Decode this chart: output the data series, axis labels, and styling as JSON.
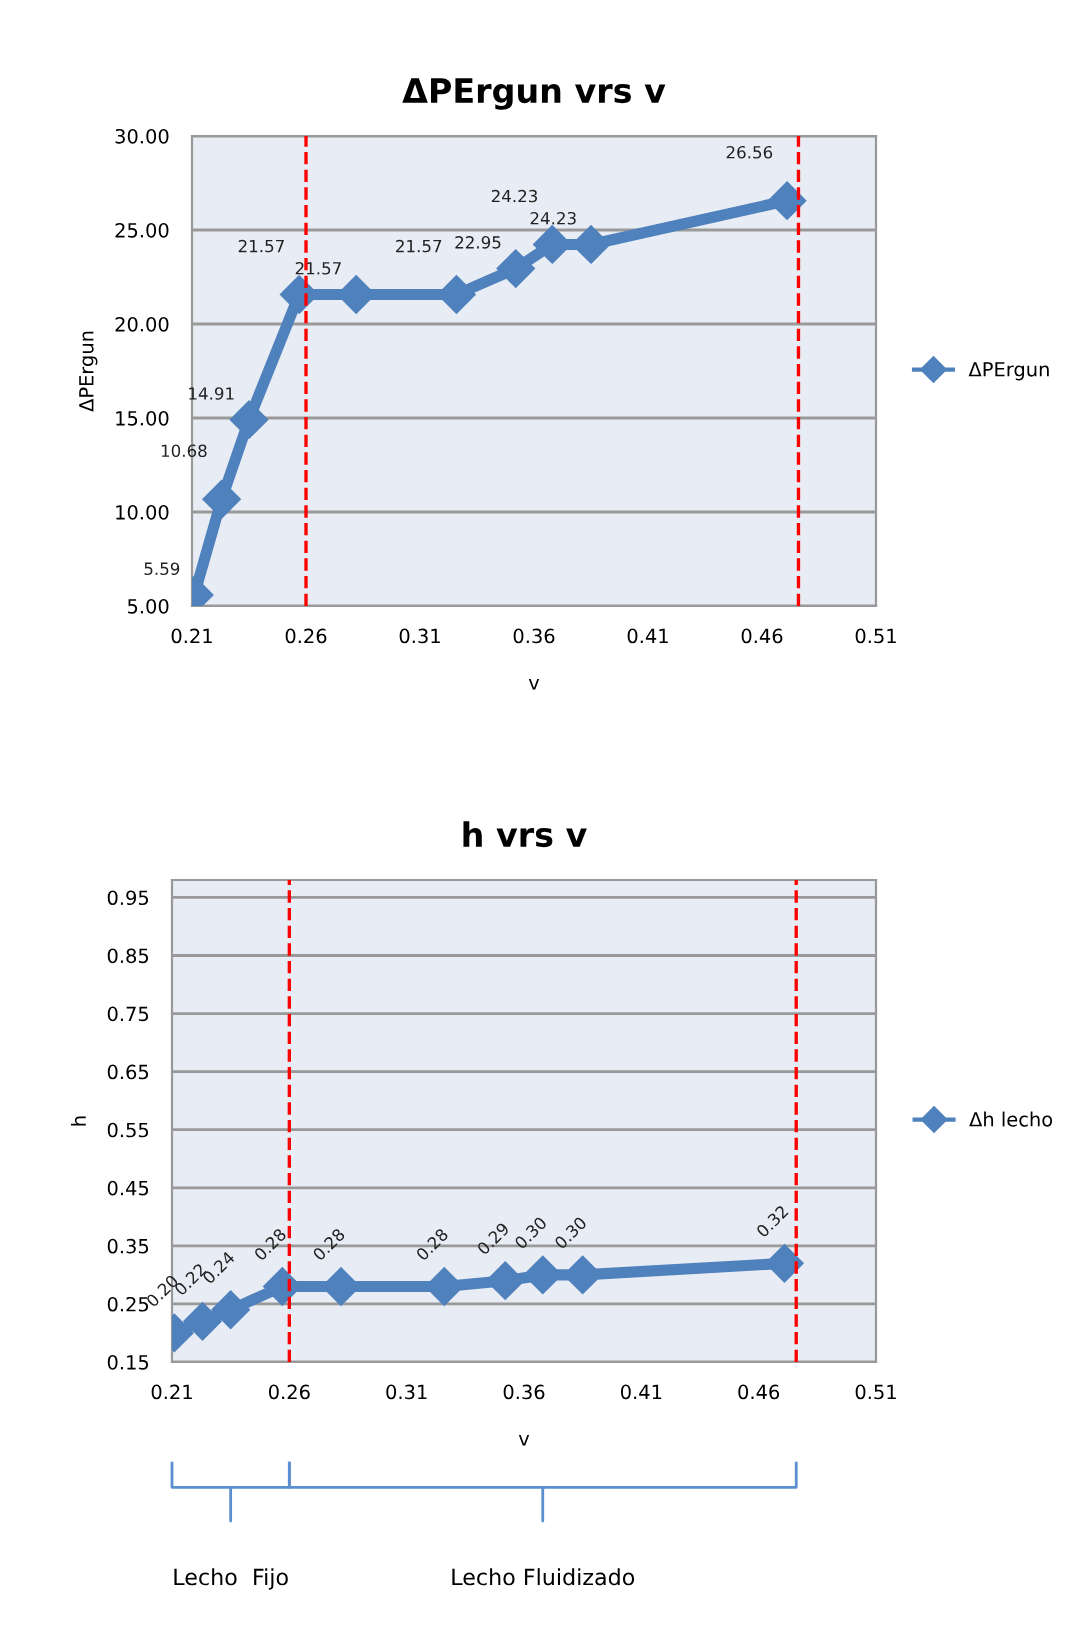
{
  "chart_data": [
    {
      "type": "line",
      "title": "ΔPErgun vrs v",
      "xlabel": "v",
      "ylabel": "ΔPErgun",
      "series": [
        {
          "name": "ΔPErgun",
          "color": "#4f81bd",
          "x": [
            0.211,
            0.223,
            0.235,
            0.257,
            0.282,
            0.326,
            0.352,
            0.368,
            0.385,
            0.471
          ],
          "values": [
            5.59,
            10.68,
            14.91,
            21.57,
            21.57,
            21.57,
            22.95,
            24.23,
            24.23,
            26.56
          ],
          "value_labels": [
            "5.59",
            "10.68",
            "14.91",
            "21.57",
            "21.57",
            "21.57",
            "22.95",
            "24.23",
            "24.23",
            "26.56"
          ]
        }
      ],
      "xlim": [
        0.21,
        0.51
      ],
      "xticks": [
        0.21,
        0.26,
        0.31,
        0.36,
        0.41,
        0.46,
        0.51
      ],
      "ylim": [
        5,
        30
      ],
      "yticks": [
        {
          "value": 5,
          "label": "5.00"
        },
        {
          "value": 10,
          "label": "10.00"
        },
        {
          "value": 15,
          "label": "15.00"
        },
        {
          "value": 20,
          "label": "20.00"
        },
        {
          "value": 25,
          "label": "25.00"
        },
        {
          "value": 30,
          "label": "30.00"
        }
      ],
      "ref_lines": [
        {
          "axis": "x",
          "value": 0.26,
          "color": "#ff0000",
          "line_style": "dashed"
        },
        {
          "axis": "x",
          "value": 0.476,
          "color": "#ff0000",
          "line_style": "dashed"
        }
      ],
      "grid": "y",
      "legend": "right",
      "marker": "diamond",
      "line_style": "solid"
    },
    {
      "type": "line",
      "title": "h vrs v",
      "xlabel": "v",
      "ylabel": "h",
      "series": [
        {
          "name": "Δh lecho",
          "color": "#4f81bd",
          "x": [
            0.211,
            0.223,
            0.235,
            0.257,
            0.282,
            0.326,
            0.352,
            0.368,
            0.385,
            0.471
          ],
          "values": [
            0.2,
            0.22,
            0.24,
            0.28,
            0.28,
            0.28,
            0.29,
            0.3,
            0.3,
            0.32
          ],
          "value_labels": [
            "0.20",
            "0.22",
            "0.24",
            "0.28",
            "0.28",
            "0.28",
            "0.29",
            "0.30",
            "0.30",
            "0.32"
          ]
        }
      ],
      "xlim": [
        0.21,
        0.51
      ],
      "xticks": [
        0.21,
        0.26,
        0.31,
        0.36,
        0.41,
        0.46,
        0.51
      ],
      "ylim": [
        0.15,
        0.98
      ],
      "yticks": [
        0.15,
        0.25,
        0.35,
        0.45,
        0.55,
        0.65,
        0.75,
        0.85,
        0.95
      ],
      "ref_lines": [
        {
          "axis": "x",
          "value": 0.26,
          "color": "#ff0000",
          "line_style": "dashed"
        },
        {
          "axis": "x",
          "value": 0.476,
          "color": "#ff0000",
          "line_style": "dashed"
        }
      ],
      "annotations": [
        "Lecho  Fijo",
        "Lecho Fluidizado"
      ],
      "grid": "y",
      "legend": "right",
      "marker": "diamond",
      "line_style": "solid"
    }
  ]
}
